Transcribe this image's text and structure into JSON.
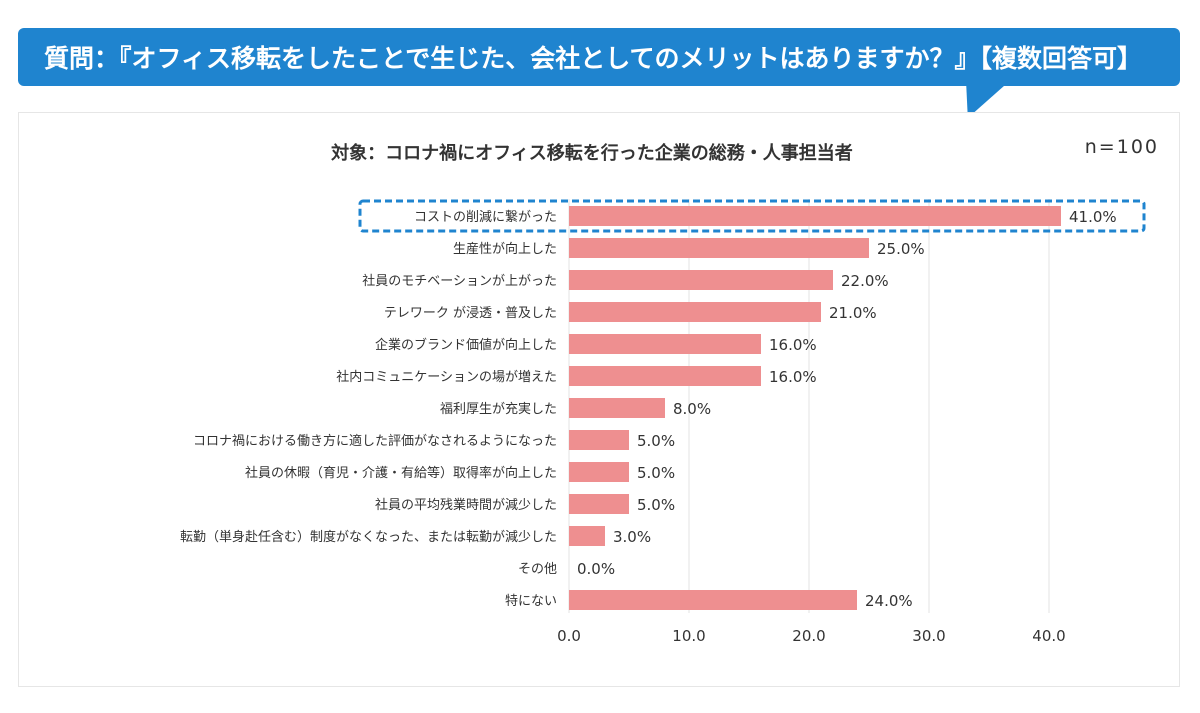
{
  "header": {
    "question": "質問：『オフィス移転をしたことで生じた、会社としてのメリットはありますか？』【複数回答可】"
  },
  "chart_data": {
    "type": "bar",
    "orientation": "horizontal",
    "title": "対象：コロナ禍にオフィス移転を行った企業の総務・人事担当者",
    "n_label": "n=100",
    "categories": [
      "コストの削減に繋がった",
      "生産性が向上した",
      "社員のモチベーションが上がった",
      "テレワーク が浸透・普及した",
      "企業のブランド価値が向上した",
      "社内コミュニケーションの場が増えた",
      "福利厚生が充実した",
      "コロナ禍における働き方に適した評価がなされるようになった",
      "社員の休暇（育児・介護・有給等）取得率が向上した",
      "社員の平均残業時間が減少した",
      "転勤（単身赴任含む）制度がなくなった、または転勤が減少した",
      "その他",
      "特にない"
    ],
    "values": [
      41.0,
      25.0,
      22.0,
      21.0,
      16.0,
      16.0,
      8.0,
      5.0,
      5.0,
      5.0,
      3.0,
      0.0,
      24.0
    ],
    "value_labels": [
      "41.0%",
      "25.0%",
      "22.0%",
      "21.0%",
      "16.0%",
      "16.0%",
      "8.0%",
      "5.0%",
      "5.0%",
      "5.0%",
      "3.0%",
      "0.0%",
      "24.0%"
    ],
    "x_ticks": [
      "0.0",
      "10.0",
      "20.0",
      "30.0",
      "40.0"
    ],
    "xlim": [
      0,
      45
    ],
    "highlighted_index": 0,
    "grid": true,
    "colors": {
      "bar": "#ee8f90",
      "highlight_border": "#1f84cf",
      "grid": "#e3e3e3",
      "text": "#333333"
    }
  }
}
